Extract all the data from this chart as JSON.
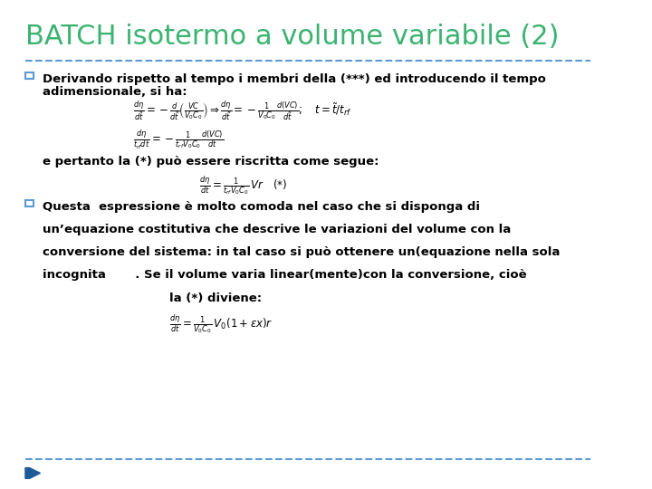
{
  "title": "BATCH isotermo a volume variabile (2)",
  "title_color": "#3CB371",
  "title_fontsize": 22,
  "bg_color": "#FFFFFF",
  "separator_color": "#5B9BD5",
  "bullet_color": "#5B9BD5",
  "text_color": "#000000",
  "bullet1_line1": "Derivando rispetto al tempo i membri della (***) ed introducendo il tempo",
  "bullet1_line2": "adimensionale, si ha:",
  "formula1": "$\\frac{d\\eta}{d\\tilde{t}} = -\\frac{d}{d\\tilde{t}}\\left(\\frac{VC}{V_0 C_0}\\right) \\Rightarrow \\frac{d\\eta}{d\\tilde{t}} = -\\frac{1}{V_0 C_0}\\frac{d(VC)}{d\\tilde{t}};\\quad t = \\tilde{t}/t_{rf}$",
  "formula2": "$\\frac{d\\eta}{t_{rf}dt} = -\\frac{1}{t_{rf}V_0C_0}\\frac{d(VC)}{dt}$",
  "text_between": "e pertanto la (*) può essere riscritta come segue:",
  "formula3": "$\\frac{d\\eta}{dt} = \\frac{1}{t_{rf}V_0C_0}\\,Vr \\quad (*)$",
  "bullet2_line1": "Questa  espressione è molto comoda nel caso che si disponga di",
  "bullet2_line2": "un’equazione costitutiva che descrive le variazioni del volume con la",
  "bullet2_line3": "conversione del sistema: in tal caso si può ottenere un(equazione nella sola",
  "bullet2_line4": "incognita       . Se il volume varia linear(mente)con la conversione, cioè",
  "bullet2_line5": "la (*) diviene:",
  "formula4": "$\\frac{d\\eta}{dt} = \\frac{1}{V_0C_0}\\,V_0(1+\\varepsilon x)r$",
  "footer_color": "#5B9BD5",
  "arrow_color": "#1E5C99"
}
